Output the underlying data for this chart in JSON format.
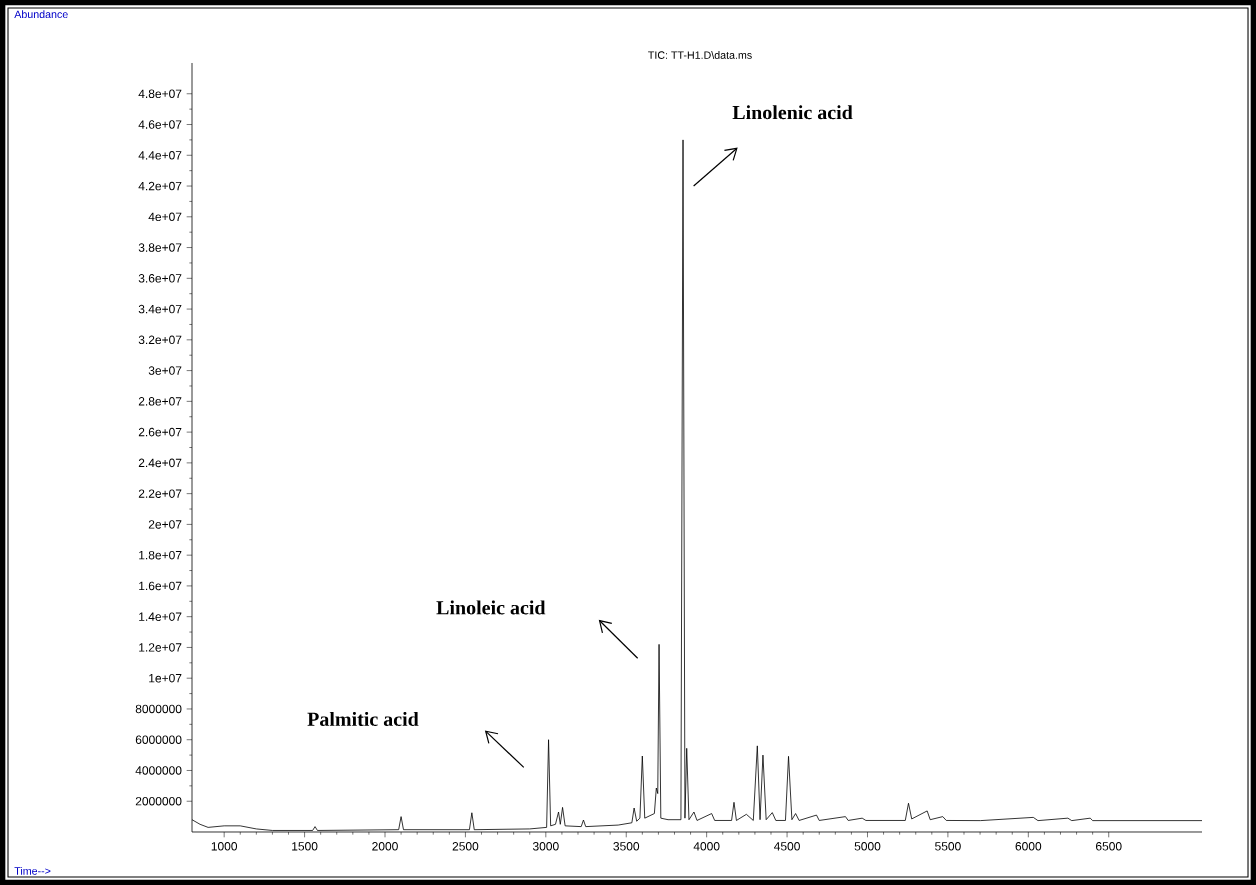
{
  "chart_data": {
    "type": "line",
    "title": "TIC: TT-H1.D\\data.ms",
    "annotations": [
      "Linolenic acid",
      "Linoleic acid",
      "Palmitic acid",
      "Abundance",
      "Time-->"
    ],
    "x": [
      800,
      850,
      900,
      1000,
      1100,
      1200,
      1300,
      1550,
      1565,
      1580,
      2085,
      2100,
      2115,
      2525,
      2540,
      2555,
      2900,
      3005,
      3017,
      3030,
      3060,
      3079,
      3090,
      3104,
      3120,
      3220,
      3234,
      3248,
      3450,
      3535,
      3549,
      3565,
      3585,
      3600,
      3615,
      3675,
      3687,
      3696,
      3704,
      3715,
      3760,
      3840,
      3853,
      3865,
      3876,
      3890,
      3921,
      3940,
      4031,
      4050,
      4155,
      4170,
      4185,
      4247,
      4290,
      4315,
      4332,
      4350,
      4370,
      4408,
      4430,
      4490,
      4509,
      4530,
      4553,
      4575,
      4683,
      4700,
      4863,
      4880,
      4967,
      4990,
      5235,
      5255,
      5275,
      5371,
      5390,
      5468,
      5490,
      5702,
      6031,
      6060,
      6246,
      6270,
      6385,
      6400,
      7080
    ],
    "series": [
      {
        "color": "#000000",
        "values": [
          800000,
          500000,
          300000,
          400000,
          400000,
          200000,
          100000,
          100000,
          350000,
          100000,
          150000,
          1000000,
          150000,
          150000,
          1250000,
          150000,
          200000,
          300000,
          6000000,
          400000,
          500000,
          1300000,
          500000,
          1600000,
          400000,
          350000,
          780000,
          350000,
          450000,
          600000,
          1560000,
          700000,
          900000,
          4940000,
          900000,
          1200000,
          2860000,
          2500000,
          12200000,
          900000,
          800000,
          800000,
          45000000,
          900000,
          5440000,
          800000,
          1300000,
          750000,
          1200000,
          750000,
          750000,
          1930000,
          750000,
          1150000,
          750000,
          5600000,
          800000,
          5000000,
          800000,
          1260000,
          750000,
          750000,
          4920000,
          800000,
          1200000,
          750000,
          1100000,
          750000,
          1000000,
          750000,
          900000,
          750000,
          750000,
          1870000,
          850000,
          1370000,
          800000,
          1000000,
          750000,
          740000,
          950000,
          740000,
          900000,
          740000,
          900000,
          740000,
          740000
        ]
      }
    ],
    "xlim": [
      800,
      7080
    ],
    "ylim": [
      0,
      50000000
    ],
    "xticks": [
      1000,
      1500,
      2000,
      2500,
      3000,
      3500,
      4000,
      4500,
      5000,
      5500,
      6000,
      6500
    ],
    "yticks": [
      2000000,
      4000000,
      6000000,
      8000000,
      {
        "value": 10000000,
        "label": "1e+07"
      },
      {
        "value": 12000000,
        "label": "1.2e+07"
      },
      {
        "value": 14000000,
        "label": "1.4e+07"
      },
      {
        "value": 16000000,
        "label": "1.6e+07"
      },
      {
        "value": 18000000,
        "label": "1.8e+07"
      },
      {
        "value": 20000000,
        "label": "2e+07"
      },
      {
        "value": 22000000,
        "label": "2.2e+07"
      },
      {
        "value": 24000000,
        "label": "2.4e+07"
      },
      {
        "value": 26000000,
        "label": "2.6e+07"
      },
      {
        "value": 28000000,
        "label": "2.8e+07"
      },
      {
        "value": 30000000,
        "label": "3e+07"
      },
      {
        "value": 32000000,
        "label": "3.2e+07"
      },
      {
        "value": 34000000,
        "label": "3.4e+07"
      },
      {
        "value": 36000000,
        "label": "3.6e+07"
      },
      {
        "value": 38000000,
        "label": "3.8e+07"
      },
      {
        "value": 40000000,
        "label": "4e+07"
      },
      {
        "value": 42000000,
        "label": "4.2e+07"
      },
      {
        "value": 44000000,
        "label": "4.4e+07"
      },
      {
        "value": 46000000,
        "label": "4.6e+07"
      },
      {
        "value": 48000000,
        "label": "4.8e+07"
      }
    ]
  }
}
